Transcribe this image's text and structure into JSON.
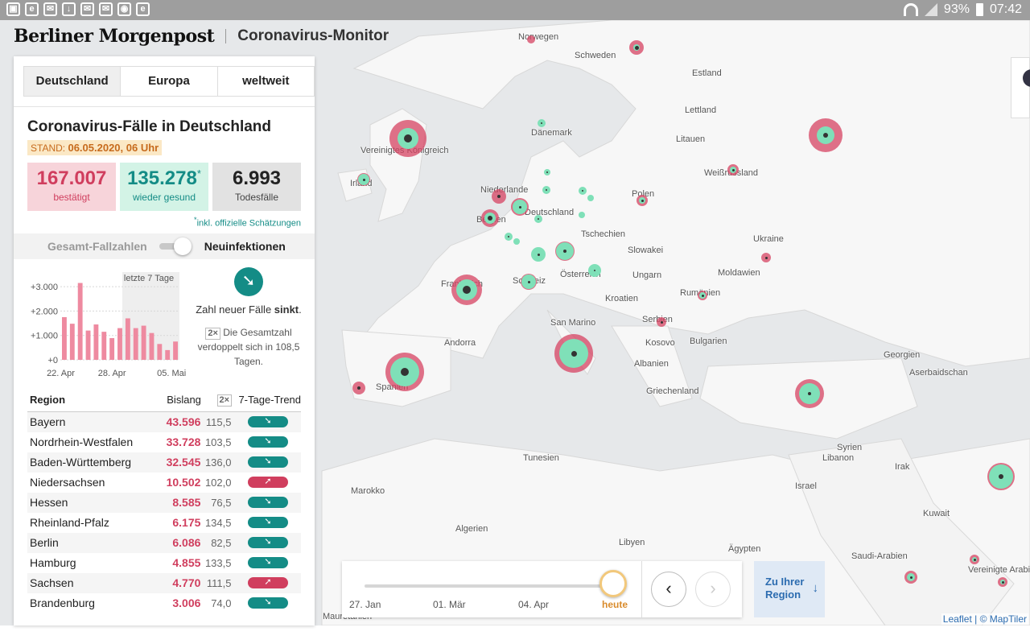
{
  "status_bar": {
    "battery": "93%",
    "time": "07:42"
  },
  "header": {
    "brand": "Berliner Morgenpost",
    "title": "Coronavirus-Monitor"
  },
  "tabs": [
    {
      "label": "Deutschland",
      "active": true
    },
    {
      "label": "Europa",
      "active": false
    },
    {
      "label": "weltweit",
      "active": false
    }
  ],
  "summary": {
    "title": "Coronavirus-Fälle in Deutschland",
    "stand_label": "STAND:",
    "stand_value": "06.05.2020, 06 Uhr",
    "confirmed": "167.007",
    "confirmed_label": "bestätigt",
    "recovered": "135.278",
    "recovered_mark": "*",
    "recovered_label": "wieder gesund",
    "deaths": "6.993",
    "deaths_label": "Todesfälle",
    "footnote_mark": "*",
    "footnote": "inkl. offizielle Schätzungen"
  },
  "toggle": {
    "left": "Gesamt-Fallzahlen",
    "right": "Neuinfektionen",
    "selected": "Neuinfektionen"
  },
  "trend": {
    "text_prefix": "Zahl neuer Fälle ",
    "text_bold": "sinkt",
    "text_suffix": ".",
    "x2": "2×",
    "doubling_text": "Die Gesamtzahl verdoppelt sich in 108,5 Tagen.",
    "colors": {
      "down": "#148c86",
      "up": "#d03e5e"
    }
  },
  "chart_data": {
    "type": "bar",
    "annotation": "letzte 7 Tage",
    "yticks": [
      "+3.000",
      "+2.000",
      "+1.000",
      "+0"
    ],
    "xtick_labels": [
      "22. Apr",
      "28. Apr",
      "05. Mai"
    ],
    "ylim": [
      0,
      3200
    ],
    "values": [
      1750,
      1480,
      3150,
      1200,
      1450,
      1150,
      890,
      1300,
      1700,
      1300,
      1400,
      1100,
      650,
      400,
      750
    ],
    "highlight_last": 7,
    "color": "#ee8aa0"
  },
  "table": {
    "headers": {
      "region": "Region",
      "total": "Bislang",
      "x2": "2×",
      "trend": "7-Tage-Trend"
    },
    "rows": [
      {
        "region": "Bayern",
        "total": "43.596",
        "doubling": "115,5",
        "trend": "down"
      },
      {
        "region": "Nordrhein-Westfalen",
        "total": "33.728",
        "doubling": "103,5",
        "trend": "down"
      },
      {
        "region": "Baden-Württemberg",
        "total": "32.545",
        "doubling": "136,0",
        "trend": "down"
      },
      {
        "region": "Niedersachsen",
        "total": "10.502",
        "doubling": "102,0",
        "trend": "up"
      },
      {
        "region": "Hessen",
        "total": "8.585",
        "doubling": "76,5",
        "trend": "down"
      },
      {
        "region": "Rheinland-Pfalz",
        "total": "6.175",
        "doubling": "134,5",
        "trend": "down"
      },
      {
        "region": "Berlin",
        "total": "6.086",
        "doubling": "82,5",
        "trend": "down"
      },
      {
        "region": "Hamburg",
        "total": "4.855",
        "doubling": "133,5",
        "trend": "down"
      },
      {
        "region": "Sachsen",
        "total": "4.770",
        "doubling": "111,5",
        "trend": "up"
      },
      {
        "region": "Brandenburg",
        "total": "3.006",
        "doubling": "74,0",
        "trend": "down"
      }
    ]
  },
  "timeline": {
    "labels": [
      "27. Jan",
      "01. Mär",
      "04. Apr",
      "heute"
    ],
    "prev": "‹",
    "next": "›"
  },
  "region_button": {
    "line1": "Zu Ihrer",
    "line2": "Region",
    "arrow": "↓"
  },
  "attribution": "Leaflet | © MapTiler",
  "map_labels": [
    "Norwegen",
    "Schweden",
    "Estland",
    "Lettland",
    "Dänemark",
    "Litauen",
    "Vereinigtes Königreich",
    "Irland",
    "Niederlande",
    "Weißrussland",
    "Polen",
    "Belgien",
    "Deutschland",
    "Tschechien",
    "Ukraine",
    "Slowakei",
    "Frankreich",
    "Schweiz",
    "Österreich",
    "Ungarn",
    "Moldawien",
    "Rumänien",
    "Kroatien",
    "San Marino",
    "Andorra",
    "Serbien",
    "Bulgarien",
    "Kosovo",
    "Albanien",
    "Georgien",
    "Aserbaidschan",
    "Spanien",
    "Griechenland",
    "Tunesien",
    "Syrien",
    "Libanon",
    "Irak",
    "Marokko",
    "Israel",
    "Kuwait",
    "Algerien",
    "Libyen",
    "Ägypten",
    "Saudi-Arabien",
    "Vereinigte Arabische Emirate",
    "Mauretanien"
  ]
}
